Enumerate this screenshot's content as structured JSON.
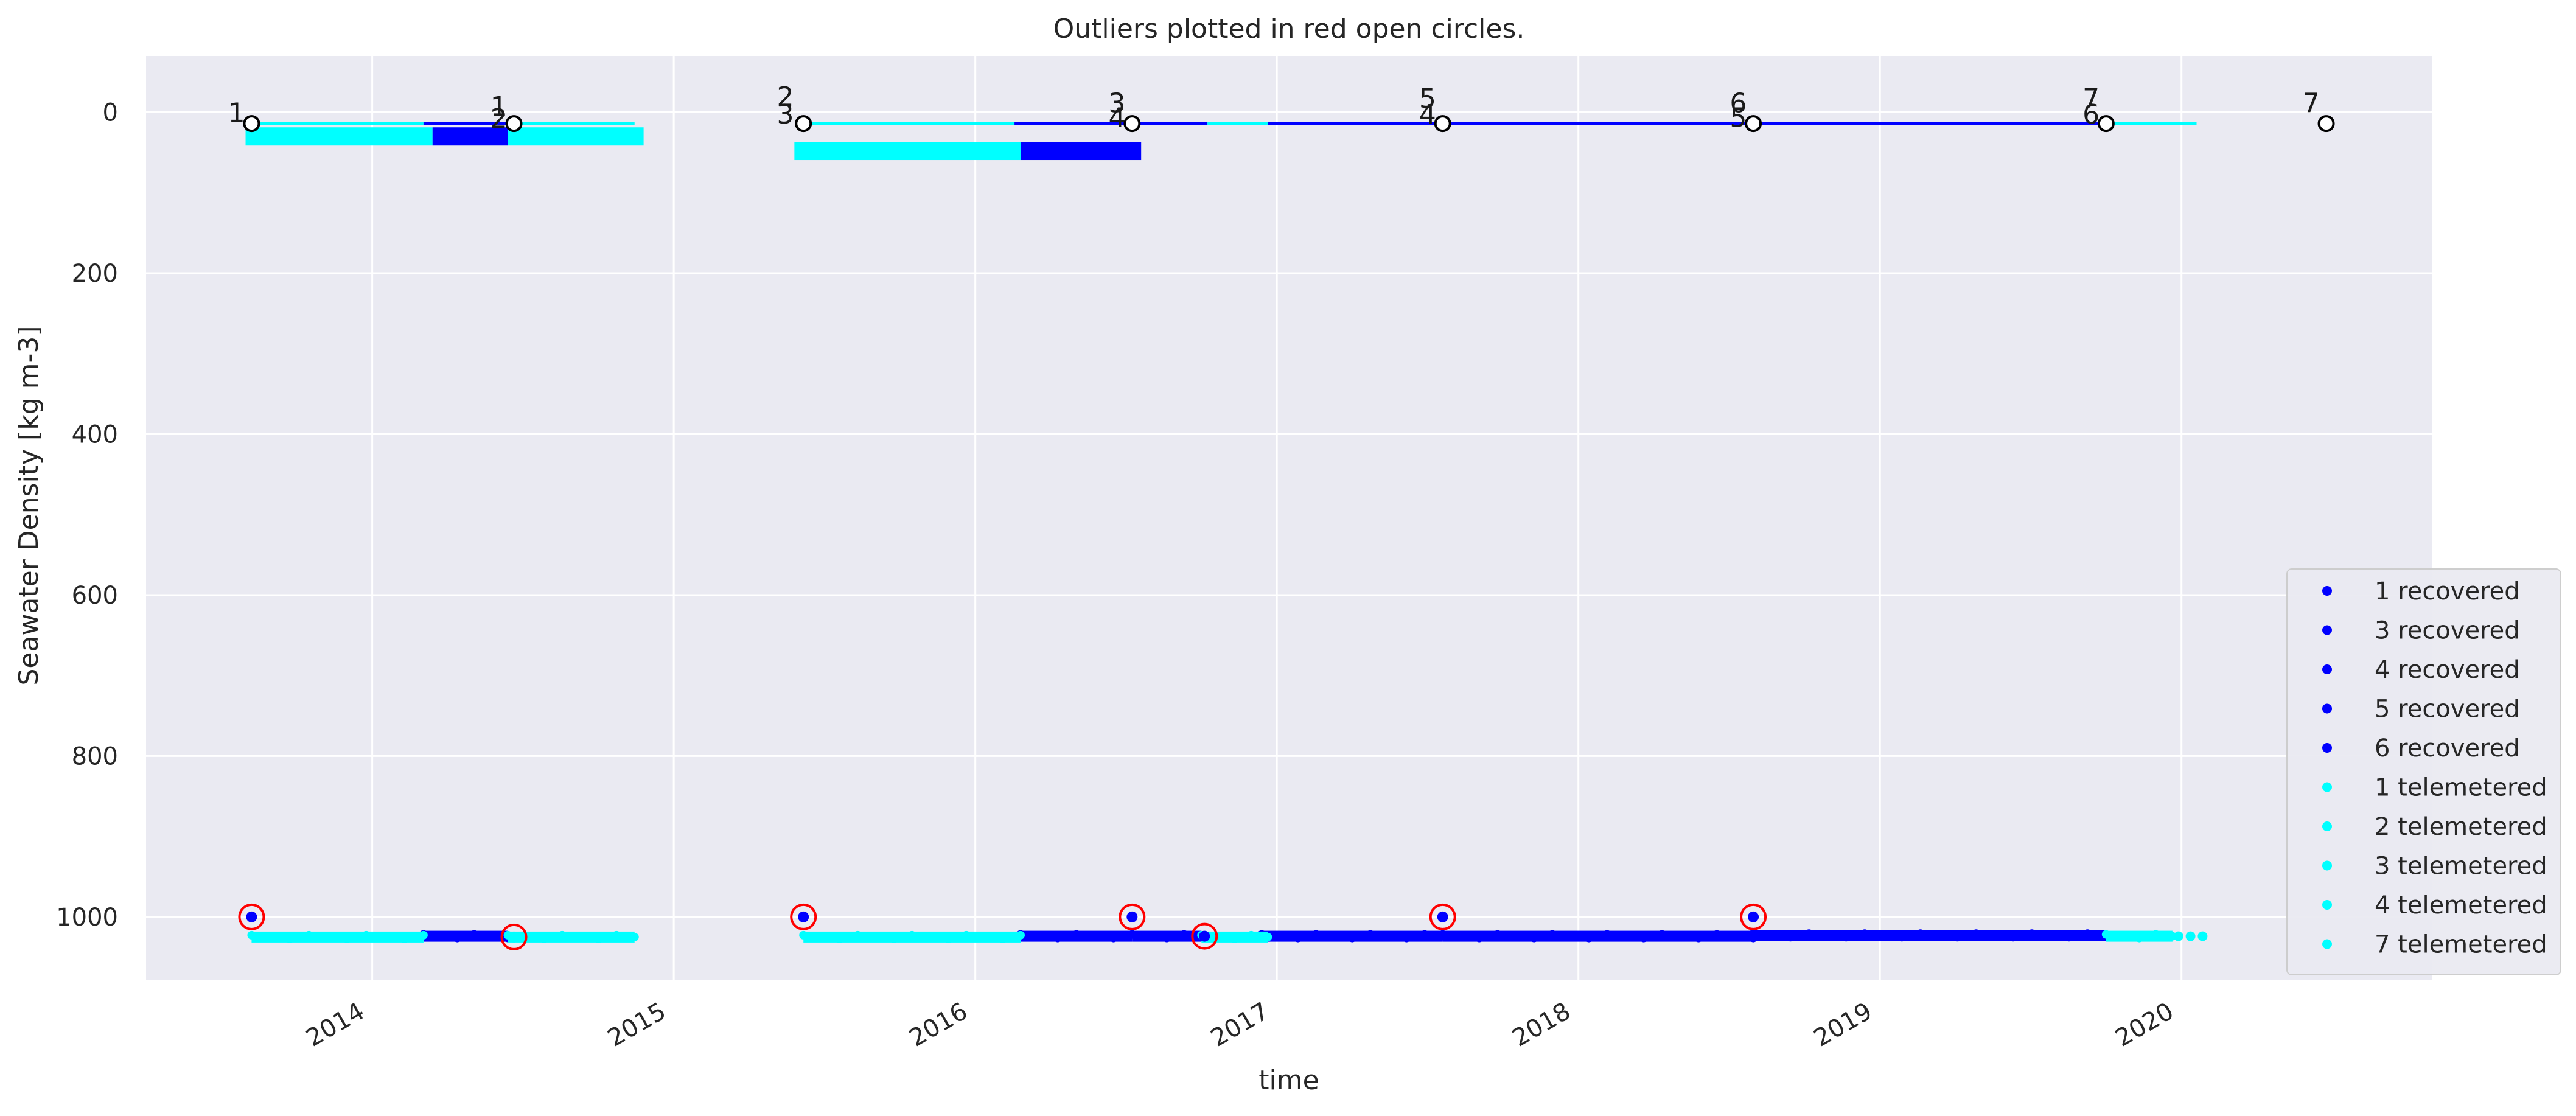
{
  "chart_data": {
    "type": "scatter",
    "title": "Outliers plotted in red open circles.",
    "xlabel": "time",
    "ylabel": "Seawater Density [kg m-3]",
    "y_inverted": true,
    "ylim": [
      1078,
      -70
    ],
    "xlim": [
      2013.25,
      2020.83
    ],
    "x_ticks": [
      2014,
      2015,
      2016,
      2017,
      2018,
      2019,
      2020
    ],
    "x_tick_labels": [
      "2014",
      "2015",
      "2016",
      "2017",
      "2018",
      "2019",
      "2020"
    ],
    "y_ticks": [
      0,
      200,
      400,
      600,
      800,
      1000
    ],
    "y_tick_labels": [
      "0",
      "200",
      "400",
      "600",
      "800",
      "1000"
    ],
    "grid": true,
    "legend_position": "lower-right",
    "colors": {
      "recovered": "#0000ff",
      "telemetered": "#00ffff",
      "outlier": "#ff0000",
      "plot_background": "#eaeaf2",
      "grid": "#ffffff",
      "deploy_marker_fill": "#ffffff",
      "deploy_marker_edge": "#000000"
    },
    "series": [
      {
        "name": "1 recovered",
        "kind": "recovered",
        "segments": [
          [
            2014.17,
            2014.45,
            1024
          ]
        ]
      },
      {
        "name": "3 recovered",
        "kind": "recovered",
        "segments": [
          [
            2016.15,
            2016.52,
            1024
          ]
        ]
      },
      {
        "name": "4 recovered",
        "kind": "recovered",
        "segments": [
          [
            2016.52,
            2016.75,
            1024
          ],
          [
            2016.95,
            2017.55,
            1024
          ]
        ]
      },
      {
        "name": "5 recovered",
        "kind": "recovered",
        "segments": [
          [
            2017.55,
            2018.58,
            1024
          ]
        ]
      },
      {
        "name": "6 recovered",
        "kind": "recovered",
        "segments": [
          [
            2018.58,
            2019.75,
            1023
          ]
        ]
      },
      {
        "name": "1 telemetered",
        "kind": "telemetered",
        "segments": [
          [
            2013.6,
            2014.17,
            1025
          ]
        ]
      },
      {
        "name": "2 telemetered",
        "kind": "telemetered",
        "segments": [
          [
            2014.45,
            2014.87,
            1025
          ]
        ]
      },
      {
        "name": "3 telemetered",
        "kind": "telemetered",
        "segments": [
          [
            2015.43,
            2016.15,
            1025
          ]
        ]
      },
      {
        "name": "4 telemetered",
        "kind": "telemetered",
        "segments": [
          [
            2016.75,
            2016.97,
            1025
          ]
        ]
      },
      {
        "name": "7 telemetered",
        "kind": "telemetered",
        "segments": [
          [
            2019.75,
            2019.97,
            1024
          ]
        ],
        "extra_points": [
          [
            2019.99,
            1024
          ],
          [
            2020.03,
            1024
          ],
          [
            2020.07,
            1024
          ]
        ]
      }
    ],
    "outliers": [
      {
        "x": 2013.6,
        "y": 1000,
        "inner": "recovered"
      },
      {
        "x": 2014.47,
        "y": 1025,
        "inner": "telemetered"
      },
      {
        "x": 2015.43,
        "y": 1000,
        "inner": "recovered"
      },
      {
        "x": 2016.52,
        "y": 1000,
        "inner": "recovered"
      },
      {
        "x": 2016.76,
        "y": 1024,
        "inner": "recovered"
      },
      {
        "x": 2017.55,
        "y": 1000,
        "inner": "recovered"
      },
      {
        "x": 2018.58,
        "y": 1000,
        "inner": "recovered"
      }
    ],
    "deployment_bars": [
      {
        "x0": 2013.6,
        "x1": 2014.17,
        "y": 14,
        "color": "telemetered",
        "weight": "thin"
      },
      {
        "x0": 2014.17,
        "x1": 2014.45,
        "y": 14,
        "color": "recovered",
        "weight": "thin"
      },
      {
        "x0": 2014.45,
        "x1": 2014.87,
        "y": 14,
        "color": "telemetered",
        "weight": "thin"
      },
      {
        "x0": 2015.43,
        "x1": 2016.13,
        "y": 14,
        "color": "telemetered",
        "weight": "thin"
      },
      {
        "x0": 2016.13,
        "x1": 2016.77,
        "y": 14,
        "color": "recovered",
        "weight": "thin"
      },
      {
        "x0": 2016.77,
        "x1": 2016.97,
        "y": 14,
        "color": "telemetered",
        "weight": "thin"
      },
      {
        "x0": 2016.97,
        "x1": 2019.75,
        "y": 14,
        "color": "recovered",
        "weight": "thin"
      },
      {
        "x0": 2019.75,
        "x1": 2020.05,
        "y": 14,
        "color": "telemetered",
        "weight": "thin"
      },
      {
        "x0": 2013.58,
        "x1": 2014.2,
        "y": 30,
        "color": "telemetered",
        "weight": "thick"
      },
      {
        "x0": 2014.2,
        "x1": 2014.45,
        "y": 30,
        "color": "recovered",
        "weight": "thick"
      },
      {
        "x0": 2014.45,
        "x1": 2014.9,
        "y": 30,
        "color": "telemetered",
        "weight": "thick"
      },
      {
        "x0": 2015.4,
        "x1": 2016.15,
        "y": 48,
        "color": "telemetered",
        "weight": "thick"
      },
      {
        "x0": 2016.15,
        "x1": 2016.55,
        "y": 48,
        "color": "recovered",
        "weight": "thick"
      }
    ],
    "deployment_markers": [
      {
        "x": 2013.6,
        "y": 14
      },
      {
        "x": 2014.47,
        "y": 14
      },
      {
        "x": 2015.43,
        "y": 14
      },
      {
        "x": 2016.52,
        "y": 14
      },
      {
        "x": 2017.55,
        "y": 14
      },
      {
        "x": 2018.58,
        "y": 14
      },
      {
        "x": 2019.75,
        "y": 14
      },
      {
        "x": 2020.48,
        "y": 14
      }
    ],
    "deployment_labels": [
      {
        "text": "1",
        "x": 2013.55,
        "y": 0
      },
      {
        "text": "1",
        "x": 2014.42,
        "y": -8
      },
      {
        "text": "2",
        "x": 2014.42,
        "y": 7
      },
      {
        "text": "2",
        "x": 2015.37,
        "y": -20
      },
      {
        "text": "3",
        "x": 2015.37,
        "y": 2
      },
      {
        "text": "3",
        "x": 2016.47,
        "y": -12
      },
      {
        "text": "4",
        "x": 2016.47,
        "y": 6
      },
      {
        "text": "5",
        "x": 2017.5,
        "y": -18
      },
      {
        "text": "4",
        "x": 2017.5,
        "y": 2
      },
      {
        "text": "6",
        "x": 2018.53,
        "y": -12
      },
      {
        "text": "5",
        "x": 2018.53,
        "y": 6
      },
      {
        "text": "7",
        "x": 2019.7,
        "y": -18
      },
      {
        "text": "6",
        "x": 2019.7,
        "y": 2
      },
      {
        "text": "7",
        "x": 2020.43,
        "y": -12
      }
    ]
  }
}
